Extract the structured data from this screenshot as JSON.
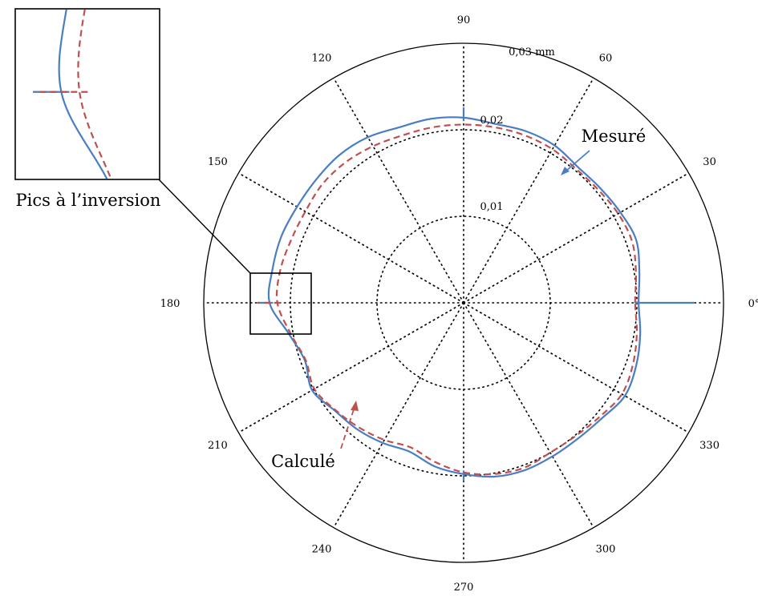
{
  "chart_data": {
    "type": "polar-line",
    "title": "",
    "angle_unit": "degrees",
    "angle_ticks": [
      {
        "angle": 0,
        "label": "0°"
      },
      {
        "angle": 30,
        "label": "30"
      },
      {
        "angle": 60,
        "label": "60"
      },
      {
        "angle": 90,
        "label": "90"
      },
      {
        "angle": 120,
        "label": "120"
      },
      {
        "angle": 150,
        "label": "150"
      },
      {
        "angle": 180,
        "label": "180"
      },
      {
        "angle": 210,
        "label": "210"
      },
      {
        "angle": 240,
        "label": "240"
      },
      {
        "angle": 270,
        "label": "270"
      },
      {
        "angle": 300,
        "label": "300"
      },
      {
        "angle": 330,
        "label": "330"
      }
    ],
    "radial_ticks": [
      {
        "value": 0.01,
        "label": "0,01"
      },
      {
        "value": 0.02,
        "label": "0,02"
      },
      {
        "value": 0.03,
        "label": "0,03 mm"
      }
    ],
    "rlim": [
      0,
      0.03
    ],
    "grid": true,
    "series": [
      {
        "name": "Mesuré",
        "color": "#4a7ec3",
        "style": "solid",
        "angles": [
          0,
          10,
          20,
          30,
          40,
          50,
          60,
          70,
          80,
          90,
          100,
          110,
          120,
          130,
          140,
          150,
          160,
          170,
          180,
          190,
          200,
          210,
          220,
          230,
          240,
          250,
          260,
          270,
          280,
          290,
          300,
          310,
          320,
          330,
          340,
          350
        ],
        "radii": [
          0.0202,
          0.0206,
          0.0212,
          0.0209,
          0.0206,
          0.0205,
          0.021,
          0.0211,
          0.021,
          0.0214,
          0.0216,
          0.0216,
          0.0221,
          0.0223,
          0.0222,
          0.0222,
          0.0224,
          0.0224,
          0.0224,
          0.0205,
          0.0195,
          0.0202,
          0.0194,
          0.0191,
          0.0187,
          0.0183,
          0.0192,
          0.0198,
          0.0204,
          0.0206,
          0.0205,
          0.0205,
          0.0208,
          0.0215,
          0.0212,
          0.0207
        ],
        "spikes": [
          {
            "angle": 0,
            "radius": 0.0266
          },
          {
            "angle": 90,
            "radius": 0.0226
          },
          {
            "angle": 180,
            "radius": 0.0238
          },
          {
            "angle": 270,
            "radius": 0.0206
          }
        ]
      },
      {
        "name": "Calculé",
        "color": "#c0504d",
        "style": "dashed",
        "angles": [
          0,
          10,
          20,
          30,
          40,
          50,
          60,
          70,
          80,
          90,
          100,
          110,
          120,
          130,
          140,
          150,
          160,
          170,
          180,
          190,
          200,
          210,
          220,
          230,
          240,
          250,
          260,
          270,
          280,
          290,
          300,
          310,
          320,
          330,
          340,
          350
        ],
        "radii": [
          0.0198,
          0.0202,
          0.0207,
          0.0206,
          0.0203,
          0.0202,
          0.0205,
          0.0206,
          0.0206,
          0.0206,
          0.0206,
          0.0206,
          0.0209,
          0.0212,
          0.0213,
          0.0211,
          0.0212,
          0.0215,
          0.0215,
          0.0203,
          0.0194,
          0.0199,
          0.0193,
          0.0188,
          0.0183,
          0.0178,
          0.0187,
          0.0196,
          0.0201,
          0.0203,
          0.02,
          0.0201,
          0.0205,
          0.0211,
          0.0208,
          0.0203
        ],
        "spikes": [
          {
            "angle": 180,
            "radius": 0.0237
          }
        ]
      }
    ],
    "annotations": [
      {
        "text": "Mesuré",
        "target_series": "Mesuré"
      },
      {
        "text": "Calculé",
        "target_series": "Calculé"
      },
      {
        "text": "Pics à l’inversion",
        "target": "inset zoom near 180°"
      }
    ]
  }
}
